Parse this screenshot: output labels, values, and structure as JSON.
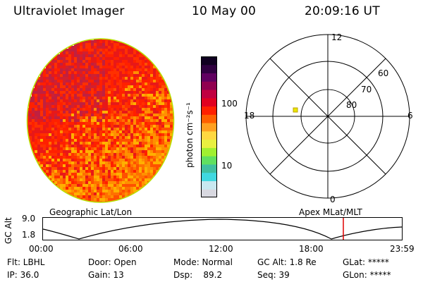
{
  "header": {
    "instrument": "Ultraviolet Imager",
    "date": "10 May 00",
    "time": "20:09:16 UT"
  },
  "colorbar": {
    "unit_label": "photon cm⁻²s⁻¹",
    "ticks": [
      "100",
      "10"
    ],
    "scale": "log",
    "colors": [
      "#d8d8e0",
      "#c8e8f0",
      "#40d8e0",
      "#40c0a0",
      "#60e060",
      "#a0f030",
      "#e8f040",
      "#ffd840",
      "#ffa020",
      "#ff6000",
      "#ff2000",
      "#e00020",
      "#c00040",
      "#900050",
      "#600060",
      "#300040",
      "#100020"
    ]
  },
  "polar_plot": {
    "mlt_labels": [
      "12",
      "18",
      "6",
      "0"
    ],
    "mlat_labels": [
      "60",
      "70",
      "80"
    ],
    "marker_color": "#e8e800"
  },
  "orbit_panel": {
    "left_title": "Geographic Lat/Lon",
    "right_title": "Apex MLat/MLT",
    "ylabel": "GC Alt",
    "y_ticks": [
      "9.0",
      "1.8"
    ],
    "x_ticks": [
      "00:00",
      "06:00",
      "12:00",
      "18:00",
      "23:59"
    ],
    "current_time_color": "#e00000"
  },
  "status": {
    "filter": "Flt: LBHL",
    "door": "Door: Open",
    "mode": "Mode: Normal",
    "gc_alt": "GC Alt: 1.8 Re",
    "glat": "GLat: *****",
    "ip": "IP: 36.0",
    "gain": "Gain: 13",
    "dsp": "Dsp:    89.2",
    "seq": "Seq: 39",
    "glon": "GLon: *****"
  },
  "image": {
    "palette": [
      "#ff2000",
      "#ff3000",
      "#e81818",
      "#d02030",
      "#c02040",
      "#ff5000",
      "#ff7000",
      "#ff9000",
      "#ffb000"
    ]
  }
}
